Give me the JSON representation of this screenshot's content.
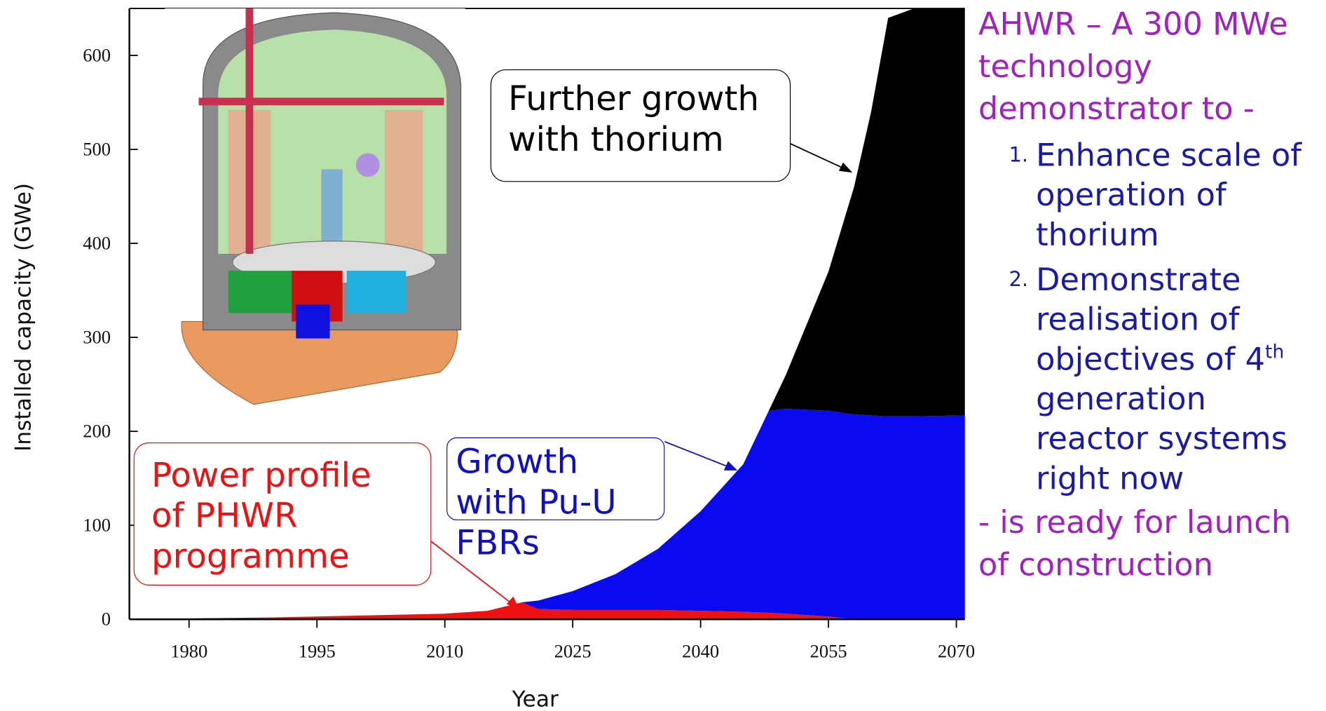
{
  "chart_data": {
    "type": "stacked_area",
    "x_label": "Year",
    "y_label": "Installed capacity (GWe)",
    "x": [
      1973,
      1980,
      1990,
      2000,
      2010,
      2015,
      2019,
      2021,
      2025,
      2030,
      2035,
      2040,
      2045,
      2048,
      2050,
      2055,
      2058,
      2060,
      2062,
      2065,
      2071
    ],
    "series": [
      {
        "name": "Power profile of PHWR programme",
        "color": "#ee1111",
        "values": [
          0,
          1,
          2,
          4,
          6,
          9,
          18,
          11,
          10,
          10,
          10,
          9,
          8,
          7,
          6,
          3,
          0,
          0,
          0,
          0,
          0
        ]
      },
      {
        "name": "Growth with Pu-U FBRs",
        "color": "#0a0aee",
        "values": [
          0,
          0,
          0,
          0,
          0,
          0,
          0,
          9,
          20,
          38,
          65,
          106,
          157,
          215,
          218,
          219,
          218,
          217,
          216,
          216,
          217
        ]
      },
      {
        "name": "Further growth with thorium",
        "color": "#000000",
        "values": [
          0,
          0,
          0,
          0,
          0,
          0,
          0,
          0,
          0,
          0,
          0,
          0,
          0,
          0,
          36,
          148,
          242,
          323,
          424,
          434,
          434
        ]
      }
    ],
    "xlim": [
      1973,
      2071
    ],
    "ylim": [
      0,
      650
    ],
    "xticks": [
      1980,
      1995,
      2010,
      2025,
      2040,
      2055,
      2070
    ],
    "yticks": [
      0,
      100,
      200,
      300,
      400,
      500,
      600
    ]
  },
  "side_panel": {
    "heading": "AHWR – A 300 MWe technology demonstrator to -",
    "items": [
      {
        "marker": "1.",
        "text": "Enhance scale of operation of thorium"
      },
      {
        "marker": "2.",
        "text": "Demonstrate realisation of objectives of 4",
        "superscript": "th",
        "text_after": "generation reactor systems right now"
      }
    ],
    "footer": "- is ready for launch of construction"
  }
}
